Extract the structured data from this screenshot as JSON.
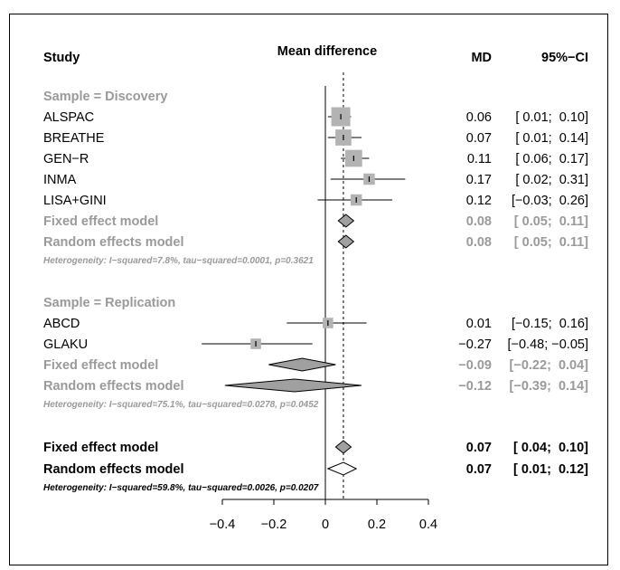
{
  "headers": {
    "study": "Study",
    "plot": "Mean difference",
    "md": "MD",
    "ci": "95%−CI"
  },
  "colors": {
    "text": "#000000",
    "subgroup": "#9a9a9a",
    "study_box": "#b3b3b3",
    "diamond_fill": "#a0a0a0",
    "line": "#000000"
  },
  "chart_data": {
    "type": "forest",
    "x_ticks": [
      "−0.4",
      "−0.2",
      "0",
      "0.2",
      "0.4"
    ],
    "x_range": [
      -0.4,
      0.4
    ],
    "reference_line": 0,
    "overall_dashed_line": 0.07,
    "groups": [
      {
        "label": "Sample = Discovery",
        "studies": [
          {
            "name": "ALSPAC",
            "md": 0.06,
            "lo": 0.01,
            "hi": 0.1,
            "md_text": "0.06",
            "ci_text": "[ 0.01;  0.10]",
            "weight": 1.0
          },
          {
            "name": "BREATHE",
            "md": 0.07,
            "lo": 0.01,
            "hi": 0.14,
            "md_text": "0.07",
            "ci_text": "[ 0.01;  0.14]",
            "weight": 0.65
          },
          {
            "name": "GEN−R",
            "md": 0.11,
            "lo": 0.06,
            "hi": 0.17,
            "md_text": "0.11",
            "ci_text": "[ 0.06;  0.17]",
            "weight": 0.75
          },
          {
            "name": "INMA",
            "md": 0.17,
            "lo": 0.02,
            "hi": 0.31,
            "md_text": "0.17",
            "ci_text": "[ 0.02;  0.31]",
            "weight": 0.25
          },
          {
            "name": "LISA+GINI",
            "md": 0.12,
            "lo": -0.03,
            "hi": 0.26,
            "md_text": "0.12",
            "ci_text": "[−0.03;  0.26]",
            "weight": 0.25
          }
        ],
        "fixed": {
          "label": "Fixed effect model",
          "md": 0.08,
          "lo": 0.05,
          "hi": 0.11,
          "md_text": "0.08",
          "ci_text": "[ 0.05;  0.11]"
        },
        "random": {
          "label": "Random effects model",
          "md": 0.08,
          "lo": 0.05,
          "hi": 0.11,
          "md_text": "0.08",
          "ci_text": "[ 0.05;  0.11]"
        },
        "heterogeneity": "Heterogeneity: I−squared=7.8%, tau−squared=0.0001, p=0.3621"
      },
      {
        "label": "Sample = Replication",
        "studies": [
          {
            "name": "ABCD",
            "md": 0.01,
            "lo": -0.15,
            "hi": 0.16,
            "md_text": "0.01",
            "ci_text": "[−0.15;  0.16]",
            "weight": 0.2
          },
          {
            "name": "GLAKU",
            "md": -0.27,
            "lo": -0.48,
            "hi": -0.05,
            "md_text": "−0.27",
            "ci_text": "[−0.48; −0.05]",
            "weight": 0.2
          }
        ],
        "fixed": {
          "label": "Fixed effect model",
          "md": -0.09,
          "lo": -0.22,
          "hi": 0.04,
          "md_text": "−0.09",
          "ci_text": "[−0.22;  0.04]"
        },
        "random": {
          "label": "Random effects model",
          "md": -0.12,
          "lo": -0.39,
          "hi": 0.14,
          "md_text": "−0.12",
          "ci_text": "[−0.39;  0.14]"
        },
        "heterogeneity": "Heterogeneity: I−squared=75.1%, tau−squared=0.0278, p=0.0452"
      }
    ],
    "overall": {
      "fixed": {
        "label": "Fixed effect model",
        "md": 0.07,
        "lo": 0.04,
        "hi": 0.1,
        "md_text": "0.07",
        "ci_text": "[ 0.04;  0.10]"
      },
      "random": {
        "label": "Random effects model",
        "md": 0.07,
        "lo": 0.01,
        "hi": 0.12,
        "md_text": "0.07",
        "ci_text": "[ 0.01;  0.12]"
      },
      "heterogeneity": "Heterogeneity: I−squared=59.8%, tau−squared=0.0026, p=0.0207"
    }
  }
}
